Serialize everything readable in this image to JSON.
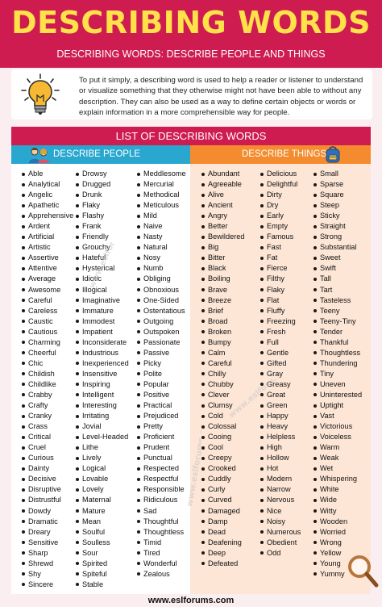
{
  "header": {
    "title": "DESCRIBING WORDS",
    "subtitle": "DESCRIBING WORDS: DESCRIBE PEOPLE AND THINGS"
  },
  "intro": {
    "text": "To put it simply, a describing word is used to help a reader or listener to understand or visualize something that they otherwise might not have been able to without any description. They can also be used as a way to define certain objects or words or explain information in a more comprehensible way for people.",
    "icon": "lightbulb-icon"
  },
  "list_header": "LIST OF DESCRIBING WORDS",
  "people": {
    "label": "DESCRIBE PEOPLE",
    "icon": "people-icon",
    "color": "#29a7cf",
    "col1": [
      "Able",
      "Analytical",
      "Angelic",
      "Apathetic",
      "Apprehensive",
      "Ardent",
      "Artificial",
      "Artistic",
      "Assertive",
      "Attentive",
      "Average",
      "Awesome",
      "Careful",
      "Careless",
      "Caustic",
      "Cautious",
      "Charming",
      "Cheerful",
      "Chic",
      "Childish",
      "Childlike",
      "Crabby",
      "Crafty",
      "Cranky",
      "Crass",
      "Critical",
      "Cruel",
      "Curious",
      "Dainty",
      "Decisive",
      "Disruptive",
      "Distrustful",
      "Dowdy",
      "Dramatic",
      "Dreary",
      "Sensitive",
      "Sharp",
      "Shrewd",
      "Shy",
      "Sincere"
    ],
    "col2": [
      "Drowsy",
      "Drugged",
      "Drunk",
      "Flaky",
      "Flashy",
      "Frank",
      "Friendly",
      "Grouchy",
      "Hateful",
      "Hysterical",
      "Idiotic",
      "Illogical",
      "Imaginative",
      "Immature",
      "Immodest",
      "Impatient",
      "Inconsiderate",
      "Industrious",
      "Inexperienced",
      "Insensitive",
      "Inspiring",
      "Intelligent",
      "Interesting",
      "Irritating",
      "Jovial",
      "Level-Headed",
      "Lithe",
      "Lively",
      "Logical",
      "Lovable",
      "Lovely",
      "Maternal",
      "Mature",
      "Mean",
      "Soulful",
      "Soulless",
      "Sour",
      "Spirited",
      "Spiteful",
      "Stable"
    ],
    "col3": [
      "Meddlesome",
      "Mercurial",
      "Methodical",
      "Meticulous",
      "Mild",
      "Naive",
      "Nasty",
      "Natural",
      "Nosy",
      "Numb",
      "Obliging",
      "Obnoxious",
      "One-Sided",
      "Ostentatious",
      "Outgoing",
      "Outspoken",
      "Passionate",
      "Passive",
      "Picky",
      "Polite",
      "Popular",
      "Positive",
      "Practical",
      "Prejudiced",
      "Pretty",
      "Proficient",
      "Prudent",
      "Punctual",
      "Respected",
      "Respectful",
      "Responsible",
      "Ridiculous",
      "Sad",
      "Thoughtful",
      "Thoughtless",
      "Timid",
      "Tired",
      "Wonderful",
      "Zealous"
    ]
  },
  "things": {
    "label": "DESCRIBE THINGS",
    "icon": "backpack-icon",
    "color": "#f48c2f",
    "col1": [
      "Abundant",
      "Agreeable",
      "Alive",
      "Ancient",
      "Angry",
      "Better",
      "Bewildered",
      "Big",
      "Bitter",
      "Black",
      "Boiling",
      "Brave",
      "Breeze",
      "Brief",
      "Broad",
      "Broken",
      "Bumpy",
      "Calm",
      "Careful",
      "Chilly",
      "Chubby",
      "Clever",
      "Clumsy",
      "Cold",
      "Colossal",
      "Cooing",
      "Cool",
      "Creepy",
      "Crooked",
      "Cuddly",
      "Curly",
      "Curved",
      "Damaged",
      "Damp",
      "Dead",
      "Deafening",
      "Deep",
      "Defeated"
    ],
    "col2": [
      "Delicious",
      "Delightful",
      "Dirty",
      "Dry",
      "Early",
      "Empty",
      "Famous",
      "Fast",
      "Fat",
      "Fierce",
      "Filthy",
      "Flaky",
      "Flat",
      "Fluffy",
      "Freezing",
      "Fresh",
      "Full",
      "Gentle",
      "Gifted",
      "Gray",
      "Greasy",
      "Great",
      "Green",
      "Happy",
      "Heavy",
      "Helpless",
      "High",
      "Hollow",
      "Hot",
      "Modern",
      "Narrow",
      "Nervous",
      "Nice",
      "Noisy",
      "Numerous",
      "Obedient",
      "Odd"
    ],
    "col3": [
      "Small",
      "Sparse",
      "Square",
      "Steep",
      "Sticky",
      "Straight",
      "Strong",
      "Substantial",
      "Sweet",
      "Swift",
      "Tall",
      "Tart",
      "Tasteless",
      "Teeny",
      "Teeny-Tiny",
      "Tender",
      "Thankful",
      "Thoughtless",
      "Thundering",
      "Tiny",
      "Uneven",
      "Uninterested",
      "Uptight",
      "Vast",
      "Victorious",
      "Voiceless",
      "Warm",
      "Weak",
      "Wet",
      "Whispering",
      "White",
      "Wide",
      "Witty",
      "Wooden",
      "Worried",
      "Wrong",
      "Yellow",
      "Young",
      "Yummy"
    ]
  },
  "watermark": "www.eslforums.com",
  "footer": "www.eslforums.com"
}
